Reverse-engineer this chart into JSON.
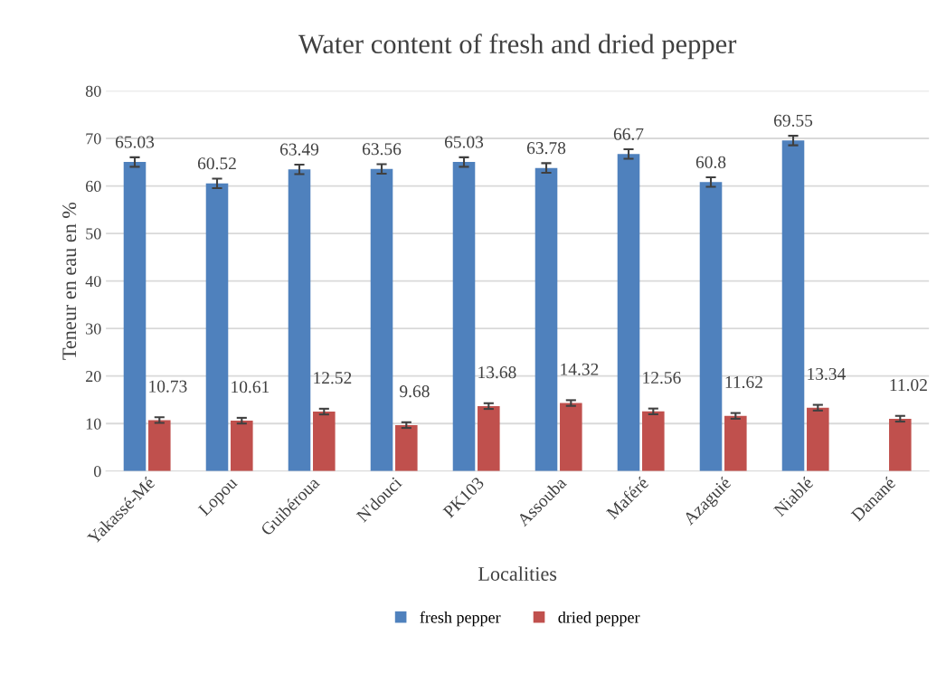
{
  "chart_data": {
    "type": "bar",
    "title": "Water content of fresh and dried pepper",
    "xlabel": "Localities",
    "ylabel": "Teneur en eau en %",
    "categories": [
      "Yakassé-Mé",
      "Lopou",
      "Guibéroua",
      "N'douci",
      "PK103",
      "Assouba",
      "Maféré",
      "Azaguié",
      "Niablé",
      "Danané"
    ],
    "series": [
      {
        "name": "fresh pepper",
        "color": "#4f81bd",
        "values": [
          65.03,
          60.52,
          63.49,
          63.56,
          65.03,
          63.78,
          66.7,
          60.8,
          69.55,
          null
        ],
        "errors": [
          1,
          1,
          1,
          1,
          1,
          1,
          1,
          1,
          1,
          null
        ]
      },
      {
        "name": "dried pepper",
        "color": "#c0504d",
        "values": [
          10.73,
          10.61,
          12.52,
          9.68,
          13.68,
          14.32,
          12.56,
          11.62,
          13.34,
          11.02
        ],
        "errors": [
          0.6,
          0.6,
          0.6,
          0.6,
          0.6,
          0.6,
          0.6,
          0.6,
          0.6,
          0.6
        ]
      }
    ],
    "ylim": [
      0,
      80
    ],
    "yticks": [
      0,
      10,
      20,
      30,
      40,
      50,
      60,
      70,
      80
    ],
    "grid": "y",
    "legend": "bottom",
    "data_labels": true
  }
}
